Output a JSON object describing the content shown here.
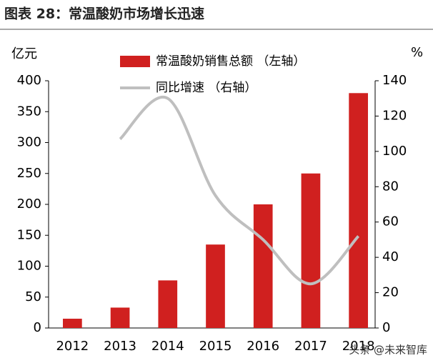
{
  "chart_data": {
    "type": "bar_line",
    "title": "图表 28：常温酸奶市场增长迅速",
    "y_label": "亿元",
    "y2_label": "%",
    "categories": [
      "2012",
      "2013",
      "2014",
      "2015",
      "2016",
      "2017",
      "2018"
    ],
    "series": [
      {
        "name": "常温酸奶销售总额 （左轴）",
        "type": "bar",
        "color": "#d0201f",
        "values": [
          15,
          33,
          77,
          135,
          200,
          250,
          380
        ]
      },
      {
        "name": "同比增速 （右轴）",
        "type": "line",
        "axis": "y2",
        "color": "#bfbfbf",
        "values": [
          null,
          107,
          130,
          75,
          50,
          25,
          52
        ]
      }
    ],
    "ylim": [
      0,
      400
    ],
    "yticks": [
      0,
      50,
      100,
      150,
      200,
      250,
      300,
      350,
      400
    ],
    "y2lim": [
      0,
      140
    ],
    "y2ticks": [
      0,
      20,
      40,
      60,
      80,
      100,
      120,
      140
    ],
    "watermark": "头条 @未来智库"
  }
}
